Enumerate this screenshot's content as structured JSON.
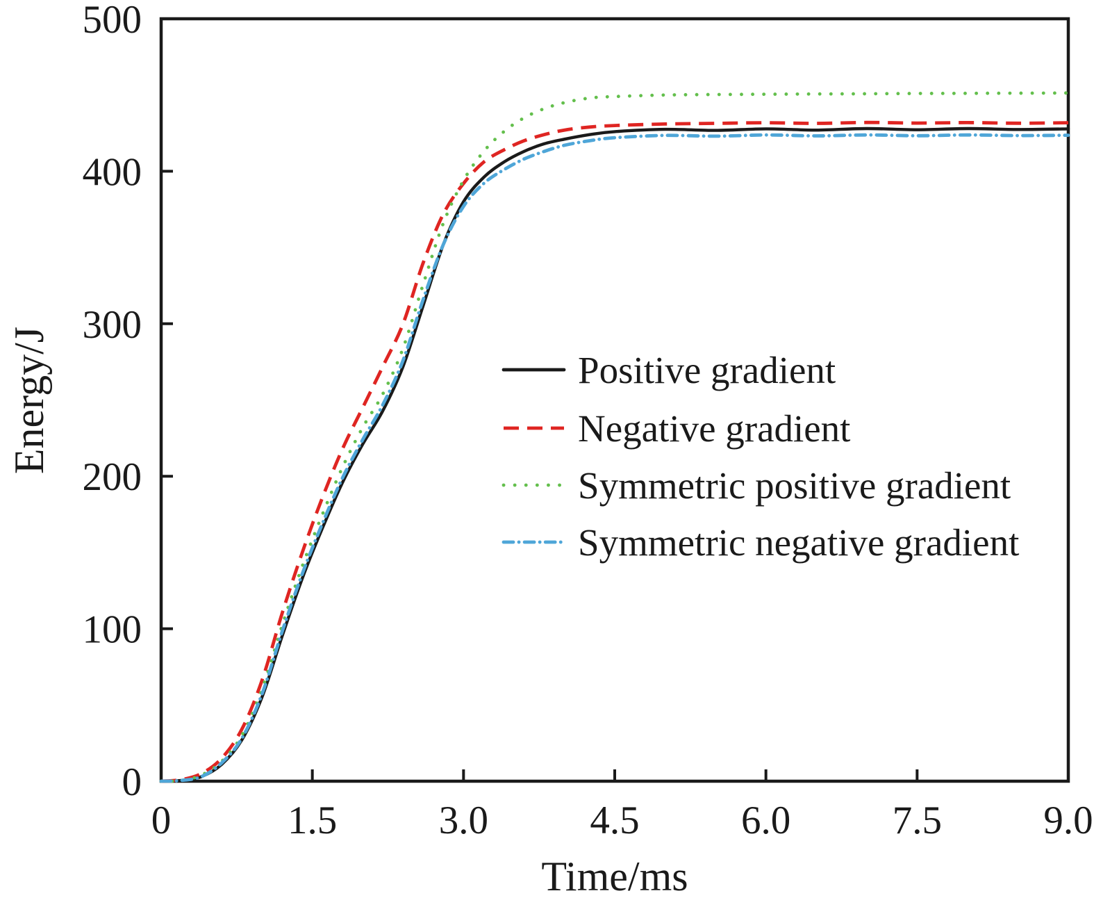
{
  "figure": {
    "background": "#ffffff",
    "axis_color": "#1a1a1a"
  },
  "chart_data": {
    "type": "line",
    "title": "",
    "xlabel": "Time/ms",
    "ylabel": "Energy/J",
    "xlim": [
      0,
      9
    ],
    "ylim": [
      0,
      500
    ],
    "grid": false,
    "legend_position": "inside-middle-right",
    "x_ticks": [
      0,
      1.5,
      3.0,
      4.5,
      6.0,
      7.5,
      9.0
    ],
    "x_tick_labels": [
      "0",
      "1.5",
      "3.0",
      "4.5",
      "6.0",
      "7.5",
      "9.0"
    ],
    "y_ticks": [
      0,
      100,
      200,
      300,
      400,
      500
    ],
    "y_tick_labels": [
      "0",
      "100",
      "200",
      "300",
      "400",
      "500"
    ],
    "x": [
      0,
      0.2,
      0.4,
      0.6,
      0.8,
      1.0,
      1.2,
      1.4,
      1.6,
      1.8,
      2.0,
      2.2,
      2.4,
      2.6,
      2.8,
      3.0,
      3.2,
      3.4,
      3.6,
      3.8,
      4.0,
      4.25,
      4.5,
      5.0,
      5.5,
      6.0,
      6.5,
      7.0,
      7.5,
      8.0,
      8.5,
      9.0
    ],
    "series": [
      {
        "name": "Positive gradient",
        "color": "#1a1a1a",
        "style": "solid",
        "values": [
          0,
          0.5,
          3,
          11,
          27,
          55,
          95,
          133,
          166,
          196,
          221,
          243,
          272,
          312,
          352,
          380,
          396,
          406,
          413,
          418,
          421,
          424,
          426,
          427.5,
          426.8,
          427.8,
          427.0,
          428.0,
          427.2,
          428.0,
          427.4,
          427.8
        ]
      },
      {
        "name": "Negative gradient",
        "color": "#df2522",
        "style": "dashed",
        "values": [
          0,
          1,
          5,
          15,
          34,
          66,
          110,
          150,
          186,
          218,
          245,
          272,
          300,
          340,
          372,
          392,
          406,
          414,
          420,
          424,
          427,
          429,
          430,
          431,
          431.4,
          431.8,
          431.4,
          432,
          431.6,
          431.9,
          431.5,
          431.8
        ]
      },
      {
        "name": "Symmetric positive gradient",
        "color": "#63bf4c",
        "style": "dotted",
        "values": [
          0,
          0.5,
          4,
          13,
          30,
          60,
          102,
          141,
          175,
          206,
          232,
          254,
          284,
          326,
          366,
          394,
          413,
          426,
          435,
          441,
          445,
          448,
          449,
          450,
          450.3,
          450.5,
          450.7,
          450.8,
          451,
          451.1,
          451.2,
          451.3
        ]
      },
      {
        "name": "Symmetric negative gradient",
        "color": "#4fa6d8",
        "style": "dash-dot",
        "values": [
          0,
          0.5,
          3,
          12,
          28,
          57,
          98,
          136,
          169,
          199,
          224,
          247,
          276,
          316,
          352,
          377,
          392,
          401,
          408,
          413,
          417,
          420,
          422,
          423.5,
          423,
          423.8,
          423.2,
          423.8,
          423.3,
          423.8,
          423.4,
          423.6
        ]
      }
    ]
  }
}
